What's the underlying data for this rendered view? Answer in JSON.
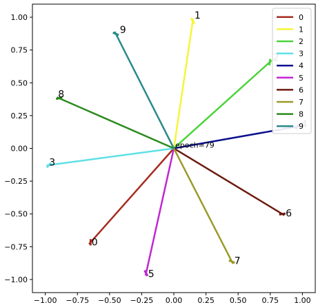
{
  "chart_data": {
    "type": "line",
    "xlim": [
      -1.1,
      1.1
    ],
    "ylim": [
      -1.1,
      1.1
    ],
    "xticks": [
      -1.0,
      -0.75,
      -0.5,
      -0.25,
      0.0,
      0.25,
      0.5,
      0.75,
      1.0
    ],
    "xtick_labels": [
      "−1.00",
      "−0.75",
      "−0.50",
      "−0.25",
      "0.00",
      "0.25",
      "0.50",
      "0.75",
      "1.00"
    ],
    "yticks": [
      1.0,
      0.75,
      0.5,
      0.25,
      0.0,
      -0.25,
      -0.5,
      -0.75,
      -1.0
    ],
    "ytick_labels": [
      "1.00",
      "0.75",
      "0.50",
      "0.25",
      "0.00",
      "−0.25",
      "−0.50",
      "−0.75",
      "−1.00"
    ],
    "annotation": {
      "text": "epoch=79",
      "x": 0.0,
      "y": 0.0
    },
    "legend_position": "top-right",
    "grid": false,
    "series": [
      {
        "name": "0",
        "color": "#a52a1e",
        "x": [
          0.0,
          -0.66
        ],
        "y": [
          0.0,
          -0.73
        ]
      },
      {
        "name": "1",
        "color": "#f5f53a",
        "x": [
          0.0,
          0.15
        ],
        "y": [
          0.0,
          0.99
        ]
      },
      {
        "name": "2",
        "color": "#4ad33a",
        "x": [
          0.0,
          0.76
        ],
        "y": [
          0.0,
          0.67
        ]
      },
      {
        "name": "3",
        "color": "#5ee0e6",
        "x": [
          0.0,
          -0.99
        ],
        "y": [
          0.0,
          -0.13
        ]
      },
      {
        "name": "4",
        "color": "#0a0f8c",
        "x": [
          0.0,
          0.98
        ],
        "y": [
          0.0,
          0.17
        ]
      },
      {
        "name": "5",
        "color": "#c026d3",
        "x": [
          0.0,
          -0.22
        ],
        "y": [
          0.0,
          -0.97
        ]
      },
      {
        "name": "6",
        "color": "#6b1a0f",
        "x": [
          0.0,
          0.86
        ],
        "y": [
          0.0,
          -0.51
        ]
      },
      {
        "name": "7",
        "color": "#9a9a2a",
        "x": [
          0.0,
          0.46
        ],
        "y": [
          0.0,
          -0.88
        ]
      },
      {
        "name": "8",
        "color": "#2a8a1e",
        "x": [
          0.0,
          -0.91
        ],
        "y": [
          0.0,
          0.39
        ]
      },
      {
        "name": "9",
        "color": "#2a8a8a",
        "x": [
          0.0,
          -0.46
        ],
        "y": [
          0.0,
          0.89
        ]
      }
    ],
    "ray_labels": [
      {
        "text": "0",
        "x": -0.64,
        "y": -0.72
      },
      {
        "text": "1",
        "x": 0.16,
        "y": 1.01
      },
      {
        "text": "2",
        "x": 0.77,
        "y": 0.69
      },
      {
        "text": "3",
        "x": -0.97,
        "y": -0.11
      },
      {
        "text": "4",
        "x": 0.99,
        "y": 0.18
      },
      {
        "text": "5",
        "x": -0.2,
        "y": -0.96
      },
      {
        "text": "6",
        "x": 0.87,
        "y": -0.5
      },
      {
        "text": "7",
        "x": 0.47,
        "y": -0.86
      },
      {
        "text": "8",
        "x": -0.9,
        "y": 0.41
      },
      {
        "text": "9",
        "x": -0.42,
        "y": 0.9
      }
    ]
  }
}
